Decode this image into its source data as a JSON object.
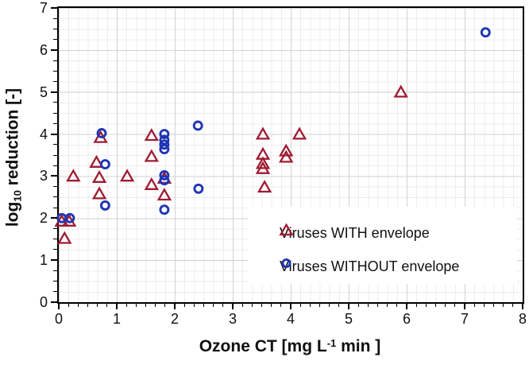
{
  "figure": {
    "x_axis": {
      "title_prefix": "Ozone CT [mg L",
      "title_sup": "-1",
      "title_suffix": " min ]",
      "tick_labels": [
        "0",
        "1",
        "2",
        "3",
        "4",
        "5",
        "6",
        "7",
        "8"
      ]
    },
    "y_axis": {
      "title_prefix": "log",
      "title_sub": "10",
      "title_suffix": " reduction [-]",
      "tick_labels": [
        "0",
        "1",
        "2",
        "3",
        "4",
        "5",
        "6",
        "7"
      ]
    },
    "legend": {
      "items": [
        {
          "label": "Viruses WITH envelope",
          "marker": "triangle",
          "color": "#9E1B32"
        },
        {
          "label": "Viruses WITHOUT envelope",
          "marker": "circle",
          "color": "#1F35B4"
        }
      ]
    }
  },
  "chart_data": {
    "type": "scatter",
    "title": "",
    "xlabel": "Ozone CT [mg L-1 min ]",
    "ylabel": "log10 reduction [-]",
    "xlim": [
      0,
      8
    ],
    "ylim": [
      0,
      7
    ],
    "x_major_unit": 1,
    "y_major_unit": 1,
    "x_minor_per_major": 6,
    "y_minor_per_major": 4,
    "grid": true,
    "legend_position": "inside bottom-right",
    "series": [
      {
        "name": "Viruses WITH envelope",
        "marker": "triangle",
        "color": "#9E1B32",
        "points": [
          [
            0.05,
            1.93
          ],
          [
            0.18,
            1.93
          ],
          [
            0.1,
            1.52
          ],
          [
            0.25,
            3.0
          ],
          [
            0.65,
            3.33
          ],
          [
            0.72,
            3.92
          ],
          [
            0.7,
            2.97
          ],
          [
            0.7,
            2.58
          ],
          [
            1.18,
            3.0
          ],
          [
            1.6,
            3.97
          ],
          [
            1.6,
            3.47
          ],
          [
            1.6,
            2.8
          ],
          [
            1.82,
            2.95
          ],
          [
            1.82,
            2.55
          ],
          [
            3.52,
            4.0
          ],
          [
            3.52,
            3.52
          ],
          [
            3.52,
            3.3
          ],
          [
            3.52,
            3.18
          ],
          [
            3.55,
            2.74
          ],
          [
            3.92,
            3.6
          ],
          [
            3.92,
            3.45
          ],
          [
            4.15,
            4.0
          ],
          [
            5.9,
            5.0
          ]
        ]
      },
      {
        "name": "Viruses WITHOUT envelope",
        "marker": "circle",
        "color": "#1F35B4",
        "points": [
          [
            0.05,
            2.0
          ],
          [
            0.19,
            2.0
          ],
          [
            0.74,
            4.02
          ],
          [
            0.8,
            3.28
          ],
          [
            0.8,
            2.3
          ],
          [
            1.82,
            4.0
          ],
          [
            1.82,
            3.86
          ],
          [
            1.82,
            3.75
          ],
          [
            1.82,
            3.64
          ],
          [
            1.82,
            3.02
          ],
          [
            1.82,
            2.9
          ],
          [
            1.82,
            2.2
          ],
          [
            2.4,
            4.2
          ],
          [
            2.41,
            2.7
          ],
          [
            7.36,
            6.42
          ]
        ]
      }
    ]
  }
}
